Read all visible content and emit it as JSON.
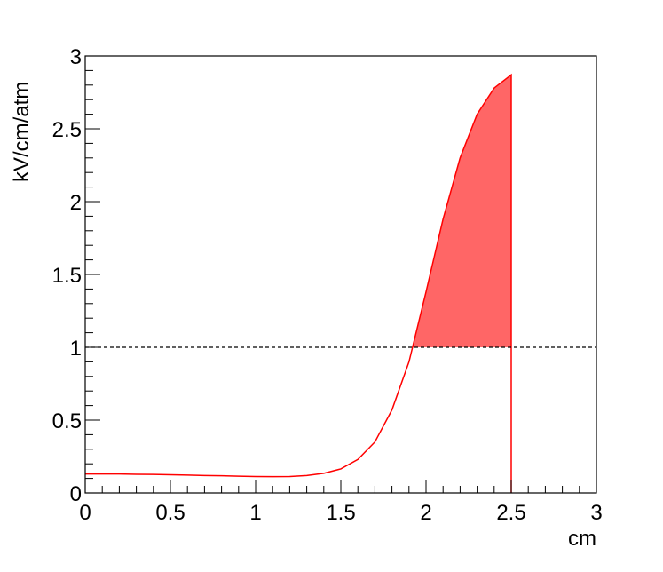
{
  "chart_data": {
    "type": "line",
    "x_label": "cm",
    "y_label": "kV/cm/atm",
    "x": [
      0,
      0.1,
      0.2,
      0.3,
      0.4,
      0.5,
      0.6,
      0.7,
      0.8,
      0.9,
      1.0,
      1.1,
      1.2,
      1.3,
      1.4,
      1.5,
      1.6,
      1.7,
      1.8,
      1.9,
      2.0,
      2.1,
      2.2,
      2.3,
      2.4,
      2.5,
      2.5
    ],
    "series": [
      {
        "color": "#ff0000",
        "fill_color": "#ff6666",
        "values": [
          0.13,
          0.13,
          0.13,
          0.128,
          0.127,
          0.125,
          0.123,
          0.12,
          0.118,
          0.115,
          0.113,
          0.112,
          0.113,
          0.12,
          0.135,
          0.165,
          0.23,
          0.35,
          0.57,
          0.9,
          1.38,
          1.88,
          2.3,
          2.6,
          2.78,
          2.87,
          0
        ]
      }
    ],
    "threshold": 1,
    "xlim": [
      0,
      3
    ],
    "ylim": [
      0,
      3
    ],
    "xticks": [
      0,
      0.5,
      1,
      1.5,
      2,
      2.5,
      3
    ],
    "yticks": [
      0,
      0.5,
      1,
      1.5,
      2,
      2.5,
      3
    ]
  }
}
